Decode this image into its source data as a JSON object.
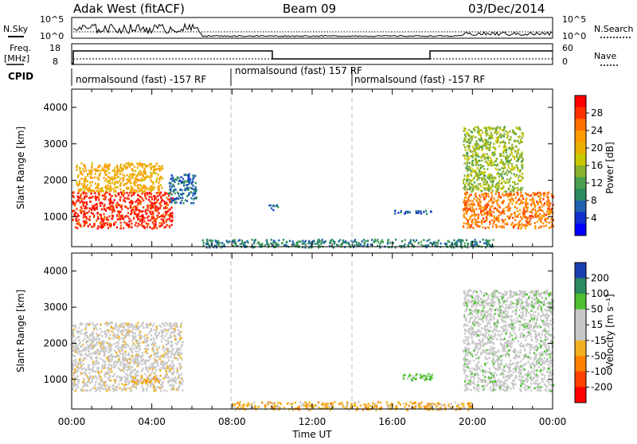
{
  "header": {
    "station": "Adak West (fitACF)",
    "beam": "Beam 09",
    "date": "03/Dec/2014"
  },
  "top_panel": {
    "left_label": "N.Sky",
    "left_ticks": [
      "10^5",
      "10^0"
    ],
    "right_ticks": [
      "10^5",
      "10^0"
    ],
    "right_label": "N.Search"
  },
  "freq_panel": {
    "left_label_1": "Freq.",
    "left_label_2": "[MHz]",
    "left_ticks": [
      "18",
      "8"
    ],
    "right_ticks": [
      "60",
      "0"
    ],
    "right_label": "Nave"
  },
  "cpid": {
    "label": "CPID",
    "segments": [
      "normalsound (fast) -157 RF",
      "normalsound (fast) 157 RF",
      "normalsound (fast) -157 RF"
    ]
  },
  "power_colorbar": {
    "label": "Power [dB]",
    "ticks": [
      "28",
      "24",
      "20",
      "16",
      "12",
      "8",
      "4"
    ]
  },
  "velocity_colorbar": {
    "label": "Velocity [m s⁻¹]",
    "ticks": [
      "200",
      "100",
      "50",
      "15",
      "-15",
      "-50",
      "-100",
      "-200"
    ]
  },
  "colors": {
    "power_scale": [
      "#ff0000",
      "#ff3000",
      "#ff7000",
      "#ff9a00",
      "#e8b000",
      "#c8c800",
      "#8ab030",
      "#4aa050",
      "#2a8a60",
      "#2060b0",
      "#1030d0",
      "#0000ff"
    ],
    "velocity_scale": [
      "#1a3fb0",
      "#2a8a60",
      "#4cc030",
      "#c8c8c8",
      "#c8c8c8",
      "#f0b020",
      "#ff8000",
      "#ff4000",
      "#ff0000"
    ]
  },
  "chart_data": [
    {
      "type": "heatmap",
      "title": "",
      "xlabel": "Time UT",
      "ylabel": "Slant Range [km]",
      "x_ticks": [
        "00:00",
        "04:00",
        "08:00",
        "12:00",
        "16:00",
        "20:00",
        "00:00"
      ],
      "y_ticks": [
        "1000",
        "2000",
        "3000",
        "4000"
      ],
      "xlim": [
        0,
        24
      ],
      "ylim": [
        180,
        4500
      ],
      "quantity": "Power [dB]",
      "color_range": [
        0,
        30
      ],
      "echo_regions": [
        {
          "t_start": 0.0,
          "t_end": 5.0,
          "range_start": 700,
          "range_end": 1700,
          "value": 28
        },
        {
          "t_start": 0.2,
          "t_end": 4.5,
          "range_start": 1700,
          "range_end": 2500,
          "value": 20
        },
        {
          "t_start": 4.8,
          "t_end": 6.2,
          "range_start": 1400,
          "range_end": 2200,
          "value": 6
        },
        {
          "t_start": 9.8,
          "t_end": 10.3,
          "range_start": 1200,
          "range_end": 1350,
          "value": 6
        },
        {
          "t_start": 16.0,
          "t_end": 18.0,
          "range_start": 1100,
          "range_end": 1200,
          "value": 5
        },
        {
          "t_start": 19.5,
          "t_end": 24.0,
          "range_start": 700,
          "range_end": 1700,
          "value": 24
        },
        {
          "t_start": 19.5,
          "t_end": 22.5,
          "range_start": 1700,
          "range_end": 3500,
          "value": 14
        },
        {
          "t_start": 6.5,
          "t_end": 21.0,
          "range_start": 180,
          "range_end": 400,
          "value": 8
        }
      ]
    },
    {
      "type": "heatmap",
      "title": "",
      "xlabel": "Time UT",
      "ylabel": "Slant Range [km]",
      "x_ticks": [
        "00:00",
        "04:00",
        "08:00",
        "12:00",
        "16:00",
        "20:00",
        "00:00"
      ],
      "y_ticks": [
        "1000",
        "2000",
        "3000",
        "4000"
      ],
      "xlim": [
        0,
        24
      ],
      "ylim": [
        180,
        4500
      ],
      "quantity": "Velocity [m s⁻¹]",
      "color_range": [
        -200,
        200
      ],
      "echo_regions": [
        {
          "t_start": 0.0,
          "t_end": 5.5,
          "range_start": 700,
          "range_end": 2600,
          "value": 0
        },
        {
          "t_start": 3.0,
          "t_end": 4.5,
          "range_start": 900,
          "range_end": 1100,
          "value": -50
        },
        {
          "t_start": 19.5,
          "t_end": 24.0,
          "range_start": 700,
          "range_end": 3500,
          "value": 50
        },
        {
          "t_start": 16.5,
          "t_end": 18.0,
          "range_start": 1000,
          "range_end": 1200,
          "value": 100
        },
        {
          "t_start": 8.0,
          "t_end": 20.0,
          "range_start": 180,
          "range_end": 400,
          "value": -50
        }
      ]
    }
  ]
}
